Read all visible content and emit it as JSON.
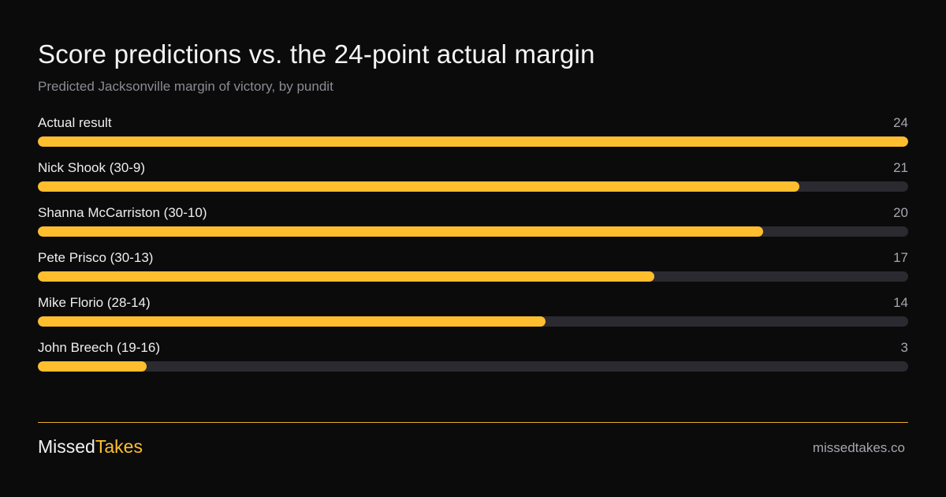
{
  "chart_data": {
    "type": "bar",
    "title": "Score predictions vs. the 24-point actual margin",
    "subtitle": "Predicted Jacksonville margin of victory, by pundit",
    "categories": [
      "Actual result",
      "Nick Shook (30-9)",
      "Shanna McCarriston (30-10)",
      "Pete Prisco (30-13)",
      "Mike Florio (28-14)",
      "John Breech (19-16)"
    ],
    "values": [
      24,
      21,
      20,
      17,
      14,
      3
    ],
    "xlim": [
      0,
      24
    ],
    "orientation": "horizontal",
    "grid": false,
    "colors": {
      "bar": "#ffbe2e",
      "track": "#2b2a31",
      "background": "#0b0b0c"
    }
  },
  "footer": {
    "brand_part1": "Missed",
    "brand_part2": "Takes",
    "site": "missedtakes.co"
  }
}
